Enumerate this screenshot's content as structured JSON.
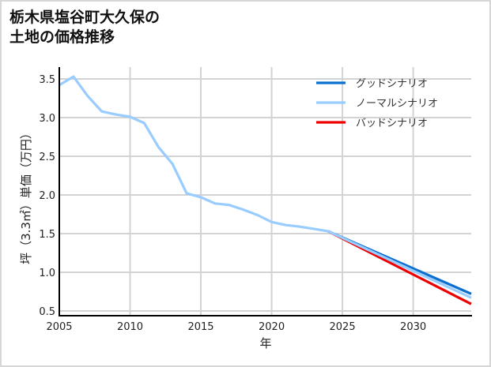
{
  "title": {
    "line1": "栃木県塩谷町大久保の",
    "line2": "土地の価格推移"
  },
  "chart_data": {
    "type": "line",
    "title": "栃木県塩谷町大久保の土地の価格推移",
    "xlabel": "年",
    "ylabel": "坪（3.3㎡）単価（万円）",
    "xlim": [
      2005,
      2034.1
    ],
    "ylim": [
      0.45,
      3.65
    ],
    "x_ticks": [
      "2005",
      "2010",
      "2015",
      "2020",
      "2025",
      "2030"
    ],
    "y_ticks": [
      "0.5",
      "1.0",
      "1.5",
      "2.0",
      "2.5",
      "3.0",
      "3.5"
    ],
    "grid": true,
    "legend_position": "upper right",
    "series": [
      {
        "name": "グッドシナリオ",
        "color": "#0a6fcf",
        "x": [
          2024,
          2034.1
        ],
        "values": [
          1.53,
          0.72
        ]
      },
      {
        "name": "ノーマルシナリオ",
        "color": "#99ccff",
        "x": [
          2005,
          2006,
          2007,
          2008,
          2009,
          2010,
          2011,
          2012,
          2013,
          2014,
          2015,
          2016,
          2017,
          2018,
          2019,
          2020,
          2021,
          2022,
          2023,
          2024,
          2034.1
        ],
        "values": [
          3.42,
          3.53,
          3.28,
          3.08,
          3.04,
          3.01,
          2.93,
          2.62,
          2.4,
          2.02,
          1.97,
          1.89,
          1.87,
          1.81,
          1.74,
          1.65,
          1.61,
          1.59,
          1.56,
          1.53,
          0.67
        ]
      },
      {
        "name": "バッドシナリオ",
        "color": "#ee0000",
        "x": [
          2024,
          2034.1
        ],
        "values": [
          1.53,
          0.59
        ]
      }
    ]
  }
}
